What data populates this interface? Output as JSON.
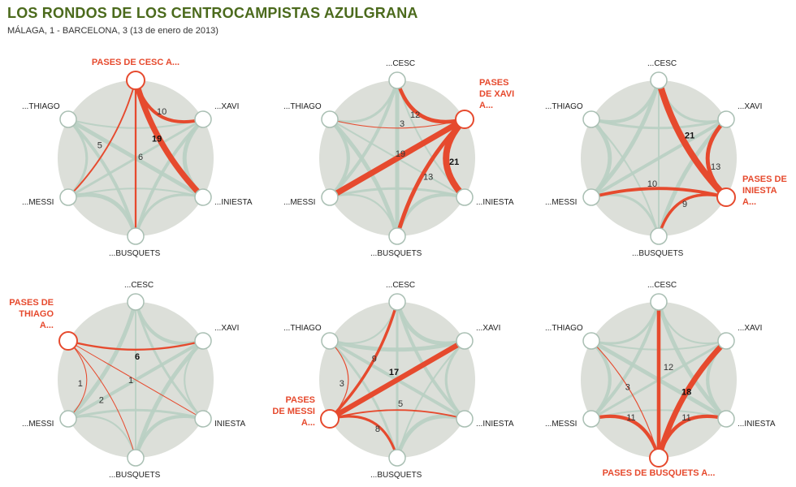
{
  "title": "LOS RONDOS DE LOS CENTROCAMPISTAS AZULGRANA",
  "subtitle": "MÁLAGA, 1 - BARCELONA, 3 (13 de enero de 2013)",
  "colors": {
    "background_disc": "#dcdfd9",
    "grey_link": "#b8cfc2",
    "highlight": "#e64a2e",
    "node_stroke": "#a9bfb3",
    "title": "#4b6a1c"
  },
  "players": [
    "cesc",
    "xavi",
    "iniesta",
    "busquets",
    "messi",
    "thiago"
  ],
  "labels": {
    "cesc": "...CESC",
    "xavi": "...XAVI",
    "iniesta": "...INIESTA",
    "iniesta_plain": "INIESTA",
    "busquets": "...BUSQUETS",
    "messi": "...MESSI",
    "thiago": "...THIAGO"
  },
  "panels": [
    {
      "from": "cesc",
      "title_lines": [
        "PASES DE CESC A..."
      ],
      "passes": [
        {
          "to": "xavi",
          "count": 10,
          "bold": false
        },
        {
          "to": "iniesta",
          "count": 19,
          "bold": true
        },
        {
          "to": "busquets",
          "count": 6,
          "bold": false
        },
        {
          "to": "messi",
          "count": 5,
          "bold": false
        }
      ]
    },
    {
      "from": "xavi",
      "title_lines": [
        "PASES",
        "DE XAVI",
        "A..."
      ],
      "passes": [
        {
          "to": "cesc",
          "count": 12,
          "bold": false
        },
        {
          "to": "thiago",
          "count": 3,
          "bold": false
        },
        {
          "to": "messi",
          "count": 19,
          "bold": false
        },
        {
          "to": "busquets",
          "count": 13,
          "bold": false
        },
        {
          "to": "iniesta",
          "count": 21,
          "bold": true
        }
      ]
    },
    {
      "from": "iniesta",
      "title_lines": [
        "PASES DE",
        "INIESTA",
        "A..."
      ],
      "passes": [
        {
          "to": "cesc",
          "count": 21,
          "bold": true
        },
        {
          "to": "xavi",
          "count": 13,
          "bold": false
        },
        {
          "to": "messi",
          "count": 10,
          "bold": false
        },
        {
          "to": "busquets",
          "count": 9,
          "bold": false
        }
      ]
    },
    {
      "from": "thiago",
      "title_lines": [
        "PASES DE",
        "THIAGO",
        "A..."
      ],
      "passes": [
        {
          "to": "xavi",
          "count": 6,
          "bold": true
        },
        {
          "to": "messi",
          "count": 1,
          "bold": false
        },
        {
          "to": "iniesta",
          "count": 1,
          "bold": false
        },
        {
          "to": "busquets",
          "count": 2,
          "bold": false
        }
      ]
    },
    {
      "from": "messi",
      "title_lines": [
        "PASES",
        "DE MESSI",
        "A..."
      ],
      "passes": [
        {
          "to": "thiago",
          "count": 3,
          "bold": false
        },
        {
          "to": "cesc",
          "count": 9,
          "bold": false
        },
        {
          "to": "xavi",
          "count": 17,
          "bold": true
        },
        {
          "to": "iniesta",
          "count": 5,
          "bold": false
        },
        {
          "to": "busquets",
          "count": 8,
          "bold": false
        }
      ]
    },
    {
      "from": "busquets",
      "title_lines": [
        "PASES DE BUSQUETS A..."
      ],
      "passes": [
        {
          "to": "thiago",
          "count": 3,
          "bold": false
        },
        {
          "to": "cesc",
          "count": 12,
          "bold": false
        },
        {
          "to": "xavi",
          "count": 18,
          "bold": true
        },
        {
          "to": "messi",
          "count": 11,
          "bold": false
        },
        {
          "to": "iniesta",
          "count": 11,
          "bold": false
        }
      ]
    }
  ]
}
